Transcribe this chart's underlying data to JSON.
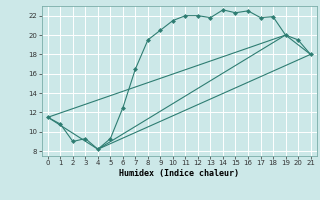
{
  "xlabel": "Humidex (Indice chaleur)",
  "xlim": [
    -0.5,
    21.5
  ],
  "ylim": [
    7.5,
    23.0
  ],
  "xticks": [
    0,
    1,
    2,
    3,
    4,
    5,
    6,
    7,
    8,
    9,
    10,
    11,
    12,
    13,
    14,
    15,
    16,
    17,
    18,
    19,
    20,
    21
  ],
  "yticks": [
    8,
    10,
    12,
    14,
    16,
    18,
    20,
    22
  ],
  "bg_color": "#cce8e8",
  "line_color": "#2e7d72",
  "line1_x": [
    0,
    1,
    2,
    3,
    4,
    5,
    6,
    7,
    8,
    9,
    10,
    11,
    12,
    13,
    14,
    15,
    16,
    17,
    18,
    19,
    20,
    21
  ],
  "line1_y": [
    11.5,
    10.8,
    9.0,
    9.3,
    8.2,
    9.3,
    12.5,
    16.5,
    19.5,
    20.5,
    21.5,
    22.0,
    22.0,
    21.8,
    22.6,
    22.3,
    22.5,
    21.8,
    21.9,
    20.0,
    19.5,
    18.0
  ],
  "line2_x": [
    0,
    4,
    21
  ],
  "line2_y": [
    11.5,
    8.2,
    18.0
  ],
  "line3_x": [
    0,
    19,
    21
  ],
  "line3_y": [
    11.5,
    20.0,
    18.0
  ],
  "line4_x": [
    4,
    19
  ],
  "line4_y": [
    8.2,
    20.0
  ],
  "figsize": [
    3.2,
    2.0
  ],
  "dpi": 100
}
